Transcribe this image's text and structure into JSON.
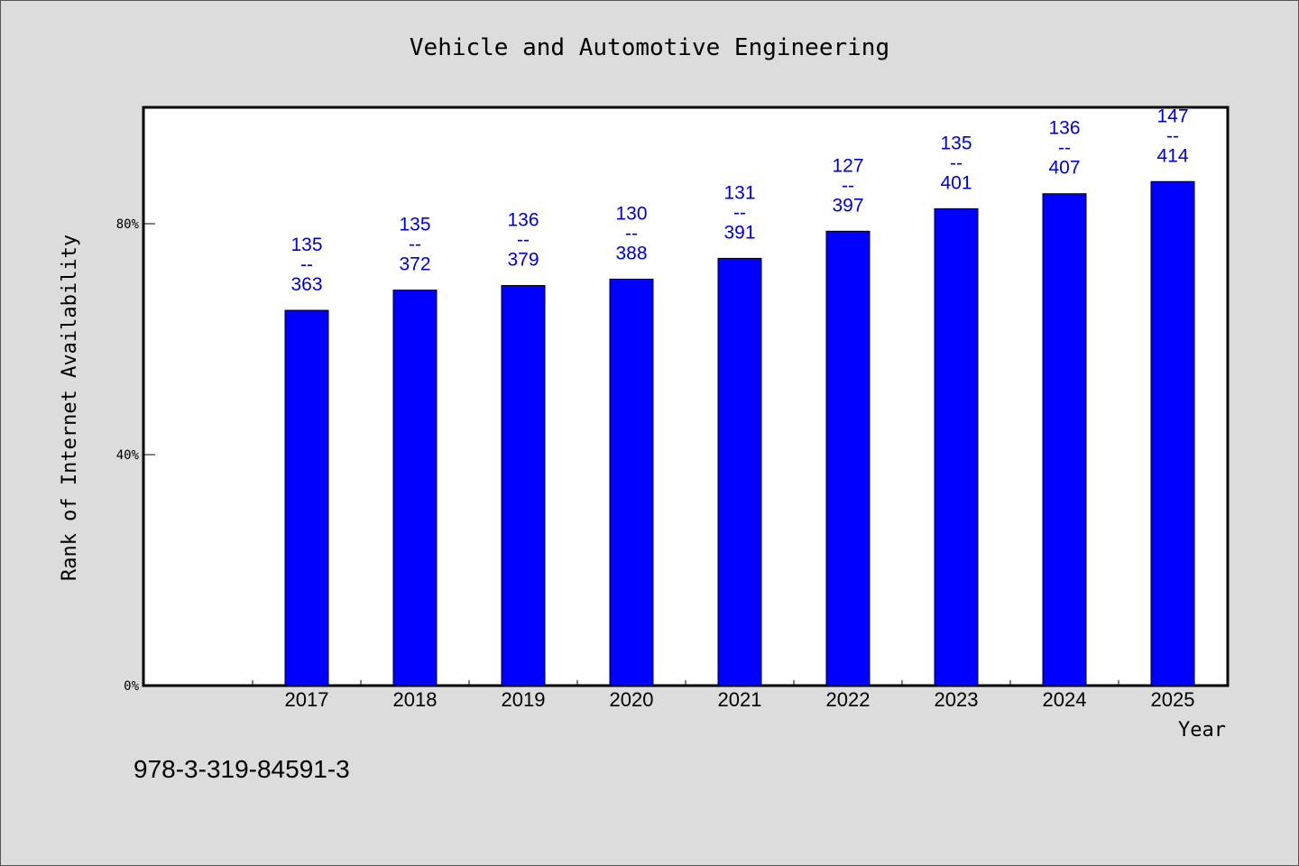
{
  "footer_code": "978-3-319-84591-3",
  "colors": {
    "bar": "#0000ff",
    "label": "#0000cc",
    "background": "#dcdcdc",
    "plot_bg": "#ffffff"
  },
  "chart_data": {
    "type": "bar",
    "title": "Vehicle and Automotive Engineering",
    "xlabel": "Year",
    "ylabel": "Rank of Internet Availability",
    "ylim": [
      0,
      100
    ],
    "yticks": [
      "0%",
      "40%",
      "80%"
    ],
    "grid": false,
    "categories": [
      "2017",
      "2018",
      "2019",
      "2020",
      "2021",
      "2022",
      "2023",
      "2024",
      "2025"
    ],
    "values": [
      65,
      68.5,
      69.3,
      70.4,
      74,
      78.7,
      82.6,
      85.2,
      87.3
    ],
    "annotations": [
      {
        "top": "135",
        "sep": "--",
        "bottom": "363"
      },
      {
        "top": "135",
        "sep": "--",
        "bottom": "372"
      },
      {
        "top": "136",
        "sep": "--",
        "bottom": "379"
      },
      {
        "top": "130",
        "sep": "--",
        "bottom": "388"
      },
      {
        "top": "131",
        "sep": "--",
        "bottom": "391"
      },
      {
        "top": "127",
        "sep": "--",
        "bottom": "397"
      },
      {
        "top": "135",
        "sep": "--",
        "bottom": "401"
      },
      {
        "top": "136",
        "sep": "--",
        "bottom": "407"
      },
      {
        "top": "147",
        "sep": "--",
        "bottom": "414"
      }
    ]
  }
}
